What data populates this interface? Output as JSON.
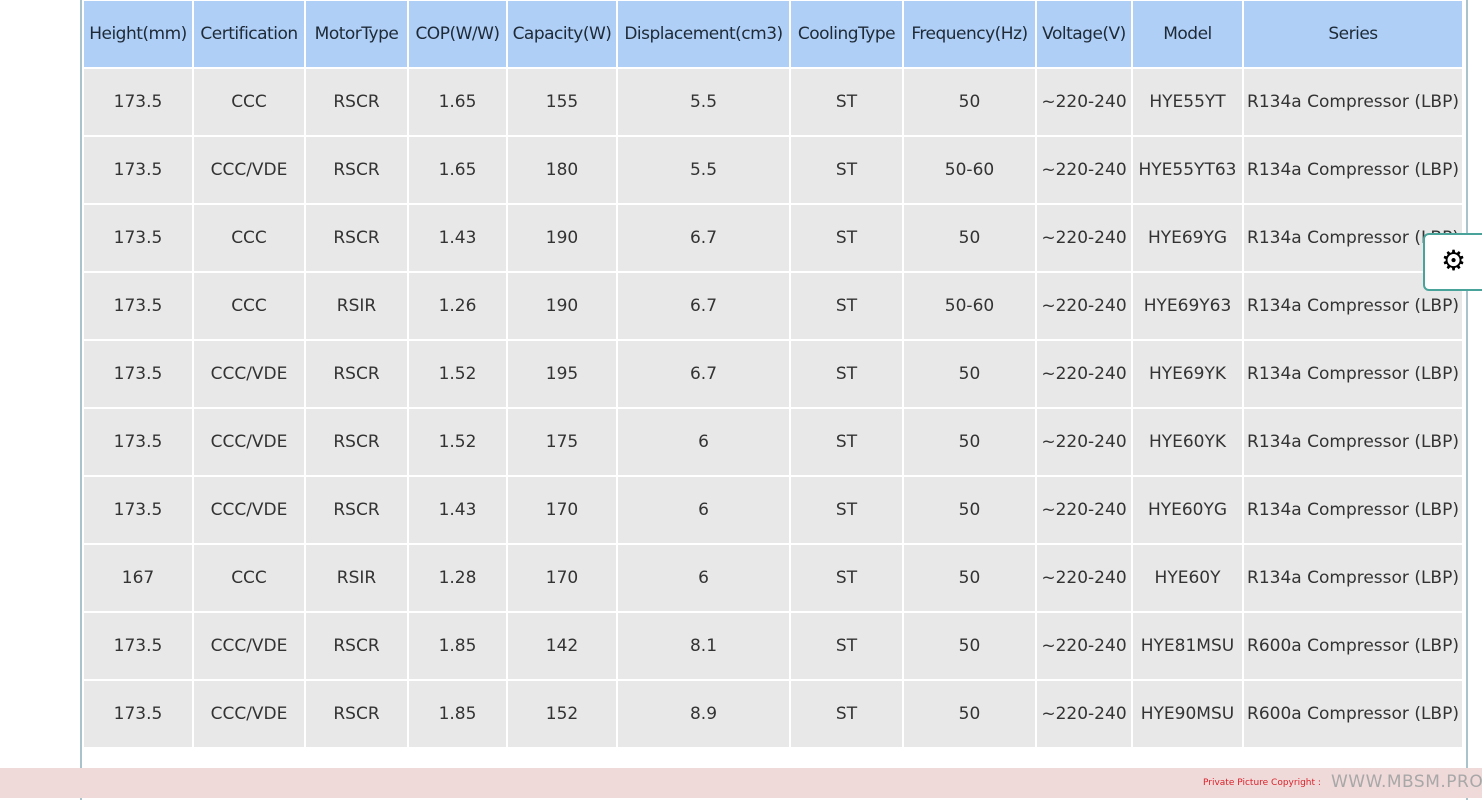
{
  "table": {
    "headers": [
      "Height(mm)",
      "Certification",
      "MotorType",
      "COP(W/W)",
      "Capacity(W)",
      "Displacement(cm3)",
      "CoolingType",
      "Frequency(Hz)",
      "Voltage(V)",
      "Model",
      "Series"
    ],
    "rows": [
      [
        "173.5",
        "CCC",
        "RSCR",
        "1.65",
        "155",
        "5.5",
        "ST",
        "50",
        "~220-240",
        "HYE55YT",
        "R134a Compressor (LBP)"
      ],
      [
        "173.5",
        "CCC/VDE",
        "RSCR",
        "1.65",
        "180",
        "5.5",
        "ST",
        "50-60",
        "~220-240",
        "HYE55YT63",
        "R134a Compressor (LBP)"
      ],
      [
        "173.5",
        "CCC",
        "RSCR",
        "1.43",
        "190",
        "6.7",
        "ST",
        "50",
        "~220-240",
        "HYE69YG",
        "R134a Compressor (LBP)"
      ],
      [
        "173.5",
        "CCC",
        "RSIR",
        "1.26",
        "190",
        "6.7",
        "ST",
        "50-60",
        "~220-240",
        "HYE69Y63",
        "R134a Compressor (LBP)"
      ],
      [
        "173.5",
        "CCC/VDE",
        "RSCR",
        "1.52",
        "195",
        "6.7",
        "ST",
        "50",
        "~220-240",
        "HYE69YK",
        "R134a Compressor (LBP)"
      ],
      [
        "173.5",
        "CCC/VDE",
        "RSCR",
        "1.52",
        "175",
        "6",
        "ST",
        "50",
        "~220-240",
        "HYE60YK",
        "R134a Compressor (LBP)"
      ],
      [
        "173.5",
        "CCC/VDE",
        "RSCR",
        "1.43",
        "170",
        "6",
        "ST",
        "50",
        "~220-240",
        "HYE60YG",
        "R134a Compressor (LBP)"
      ],
      [
        "167",
        "CCC",
        "RSIR",
        "1.28",
        "170",
        "6",
        "ST",
        "50",
        "~220-240",
        "HYE60Y",
        "R134a Compressor (LBP)"
      ],
      [
        "173.5",
        "CCC/VDE",
        "RSCR",
        "1.85",
        "142",
        "8.1",
        "ST",
        "50",
        "~220-240",
        "HYE81MSU",
        "R600a Compressor (LBP)"
      ],
      [
        "173.5",
        "CCC/VDE",
        "RSCR",
        "1.85",
        "152",
        "8.9",
        "ST",
        "50",
        "~220-240",
        "HYE90MSU",
        "R600a Compressor (LBP)"
      ]
    ]
  },
  "settings": {
    "icon": "gear-icon",
    "glyph": "⚙"
  },
  "footer": {
    "label": "Private Picture Copyright :",
    "site": "WWW.MBSM.PRO"
  },
  "colors": {
    "header_bg": "#afcff7",
    "cell_bg": "#e8e8e8",
    "footer_bg": "#f0d9d9",
    "accent": "#4aa39a"
  }
}
